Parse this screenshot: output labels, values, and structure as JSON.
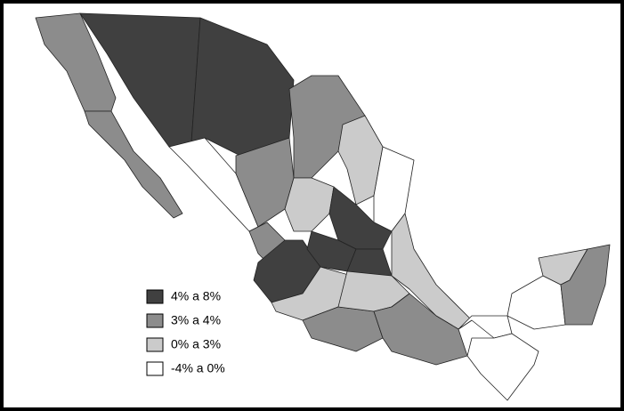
{
  "legend": [
    {
      "label": "4% a 8%",
      "color": "#404040"
    },
    {
      "label": "3% a 4%",
      "color": "#8c8c8c"
    },
    {
      "label": "0% a 3%",
      "color": "#cbcbcb"
    },
    {
      "label": "-4% a 0%",
      "color": "#ffffff"
    }
  ]
}
